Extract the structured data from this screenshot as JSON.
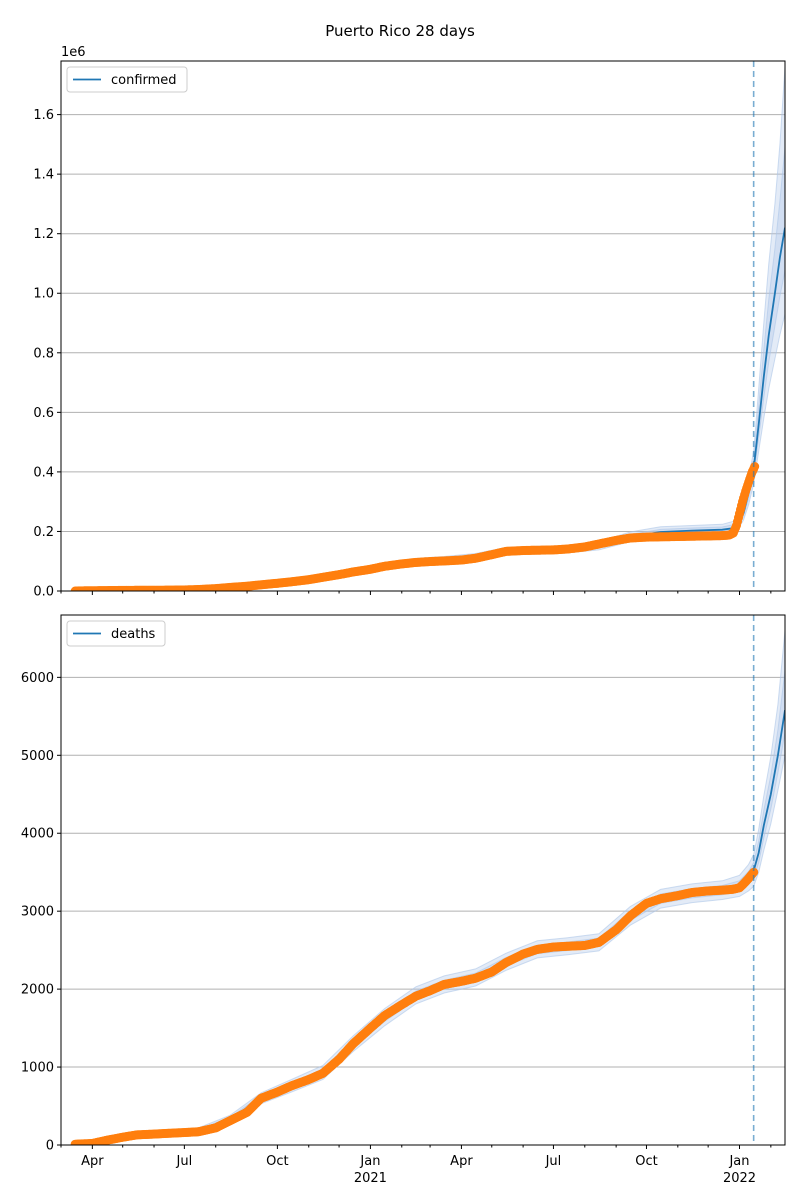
{
  "figure": {
    "title": "Puerto Rico 28 days"
  },
  "colors": {
    "model": "#1f77b4",
    "band": "#aec7e8",
    "observed": "#ff7f0e",
    "grid": "#b0b0b0",
    "forecast_line": "#1f77b4"
  },
  "chart_data": [
    {
      "type": "line",
      "legend": "confirmed",
      "legend_loc": "upper left",
      "y_offset_label": "1e6",
      "ylim": [
        0,
        1780000
      ],
      "yticks": [
        0,
        200000,
        400000,
        600000,
        800000,
        1000000,
        1200000,
        1400000,
        1600000
      ],
      "ytick_labels": [
        "0.0",
        "0.2",
        "0.4",
        "0.6",
        "0.8",
        "1.0",
        "1.2",
        "1.4",
        "1.6"
      ],
      "grid": "y",
      "forecast_start": "2022-01-15",
      "model": {
        "x": [
          "2020-03-15",
          "2020-05-01",
          "2020-07-01",
          "2020-08-15",
          "2020-09-15",
          "2020-10-15",
          "2020-11-15",
          "2020-12-15",
          "2021-01-15",
          "2021-02-15",
          "2021-03-15",
          "2021-04-15",
          "2021-05-15",
          "2021-06-15",
          "2021-07-15",
          "2021-08-15",
          "2021-09-15",
          "2021-10-15",
          "2021-11-15",
          "2021-12-15",
          "2021-12-28",
          "2022-01-05",
          "2022-01-10",
          "2022-01-15",
          "2022-01-20",
          "2022-01-25",
          "2022-01-30",
          "2022-02-05",
          "2022-02-10",
          "2022-02-15"
        ],
        "y": [
          0,
          1000,
          4000,
          12000,
          22000,
          33000,
          46000,
          63000,
          83000,
          97000,
          103000,
          113000,
          134000,
          138000,
          140000,
          152000,
          182000,
          198000,
          203000,
          206000,
          212000,
          262000,
          330000,
          410000,
          560000,
          720000,
          860000,
          1000000,
          1120000,
          1220000
        ]
      },
      "band_outer": {
        "lower": [
          0,
          0,
          2000,
          8000,
          16000,
          26000,
          38000,
          54000,
          72000,
          85000,
          92000,
          100000,
          122000,
          126000,
          128000,
          138000,
          166000,
          180000,
          186000,
          188000,
          192000,
          238000,
          290000,
          360000,
          470000,
          580000,
          680000,
          780000,
          860000,
          930000
        ],
        "upper": [
          0,
          2000,
          6000,
          16000,
          28000,
          40000,
          54000,
          72000,
          94000,
          109000,
          116000,
          126000,
          146000,
          150000,
          152000,
          166000,
          198000,
          216000,
          220000,
          224000,
          236000,
          290000,
          380000,
          470000,
          680000,
          900000,
          1100000,
          1300000,
          1500000,
          1760000
        ]
      },
      "band_inner": {
        "lower": [
          0,
          500,
          3000,
          10000,
          19000,
          29500,
          42000,
          58500,
          77500,
          91000,
          97500,
          106500,
          128000,
          132000,
          134000,
          145000,
          174000,
          189000,
          194500,
          197000,
          202000,
          250000,
          310000,
          385000,
          515000,
          650000,
          770000,
          890000,
          990000,
          1075000
        ],
        "upper": [
          0,
          1500,
          5000,
          14000,
          25000,
          36500,
          50000,
          67500,
          88500,
          103000,
          109500,
          119500,
          140000,
          144000,
          146000,
          159000,
          190000,
          207000,
          211500,
          215000,
          224000,
          276000,
          355000,
          440000,
          620000,
          810000,
          980000,
          1150000,
          1310000,
          1490000
        ]
      },
      "observed": {
        "x": [
          "2020-03-15",
          "2020-04-01",
          "2020-05-01",
          "2020-06-01",
          "2020-07-01",
          "2020-07-15",
          "2020-08-01",
          "2020-08-15",
          "2020-09-01",
          "2020-09-15",
          "2020-10-01",
          "2020-10-15",
          "2020-11-01",
          "2020-11-15",
          "2020-12-01",
          "2020-12-15",
          "2021-01-01",
          "2021-01-15",
          "2021-02-01",
          "2021-02-15",
          "2021-03-01",
          "2021-03-15",
          "2021-04-01",
          "2021-04-15",
          "2021-05-01",
          "2021-05-15",
          "2021-06-01",
          "2021-06-15",
          "2021-07-01",
          "2021-07-15",
          "2021-08-01",
          "2021-08-15",
          "2021-09-01",
          "2021-09-15",
          "2021-10-01",
          "2021-10-15",
          "2021-11-01",
          "2021-11-15",
          "2021-12-01",
          "2021-12-15",
          "2021-12-22",
          "2021-12-26",
          "2021-12-29",
          "2022-01-01",
          "2022-01-04",
          "2022-01-07",
          "2022-01-10",
          "2022-01-13",
          "2022-01-16"
        ],
        "y": [
          0,
          1000,
          2000,
          2500,
          3500,
          5000,
          8000,
          12000,
          16000,
          21000,
          26000,
          31000,
          38000,
          46000,
          55000,
          64000,
          73000,
          83000,
          91000,
          96000,
          99000,
          101000,
          104000,
          110000,
          122000,
          133000,
          136000,
          137000,
          138000,
          141000,
          148000,
          158000,
          170000,
          178000,
          181000,
          182000,
          183000,
          184000,
          185000,
          186000,
          188000,
          195000,
          220000,
          260000,
          300000,
          335000,
          365000,
          395000,
          418000
        ]
      }
    },
    {
      "type": "line",
      "legend": "deaths",
      "legend_loc": "upper left",
      "ylim": [
        0,
        6800
      ],
      "yticks": [
        0,
        1000,
        2000,
        3000,
        4000,
        5000,
        6000
      ],
      "ytick_labels": [
        "0",
        "1000",
        "2000",
        "3000",
        "4000",
        "5000",
        "6000"
      ],
      "grid": "y",
      "forecast_start": "2022-01-15",
      "model": {
        "x": [
          "2020-03-15",
          "2020-04-15",
          "2020-05-15",
          "2020-06-15",
          "2020-07-15",
          "2020-08-15",
          "2020-09-15",
          "2020-10-15",
          "2020-11-15",
          "2020-12-15",
          "2021-01-15",
          "2021-02-15",
          "2021-03-15",
          "2021-04-15",
          "2021-05-15",
          "2021-06-15",
          "2021-07-15",
          "2021-08-15",
          "2021-09-15",
          "2021-10-15",
          "2021-11-15",
          "2021-12-15",
          "2022-01-01",
          "2022-01-10",
          "2022-01-15",
          "2022-01-20",
          "2022-01-25",
          "2022-02-01",
          "2022-02-08",
          "2022-02-15"
        ],
        "y": [
          10,
          70,
          130,
          150,
          180,
          330,
          600,
          760,
          930,
          1300,
          1640,
          1920,
          2060,
          2150,
          2350,
          2510,
          2550,
          2600,
          2940,
          3160,
          3230,
          3270,
          3320,
          3420,
          3520,
          3750,
          4100,
          4500,
          5000,
          5580
        ]
      },
      "band_outer": {
        "lower": [
          0,
          40,
          90,
          110,
          140,
          280,
          530,
          680,
          840,
          1200,
          1530,
          1810,
          1950,
          2040,
          2240,
          2400,
          2440,
          2490,
          2820,
          3040,
          3110,
          3150,
          3190,
          3260,
          3320,
          3500,
          3780,
          4120,
          4550,
          5000
        ],
        "upper": [
          30,
          100,
          170,
          190,
          220,
          380,
          670,
          840,
          1020,
          1400,
          1750,
          2030,
          2170,
          2260,
          2460,
          2620,
          2660,
          2710,
          3060,
          3280,
          3350,
          3390,
          3460,
          3600,
          3730,
          4050,
          4480,
          4980,
          5650,
          6600
        ]
      },
      "band_inner": {
        "lower": [
          5,
          55,
          110,
          130,
          160,
          305,
          565,
          720,
          885,
          1250,
          1585,
          1865,
          2005,
          2095,
          2295,
          2455,
          2495,
          2545,
          2880,
          3100,
          3170,
          3210,
          3255,
          3340,
          3420,
          3625,
          3940,
          4310,
          4775,
          5290
        ],
        "upper": [
          20,
          85,
          150,
          170,
          200,
          355,
          635,
          800,
          975,
          1350,
          1695,
          1975,
          2115,
          2205,
          2405,
          2565,
          2605,
          2655,
          3000,
          3220,
          3290,
          3330,
          3390,
          3510,
          3625,
          3900,
          4290,
          4740,
          5325,
          6090
        ]
      },
      "observed": {
        "x": [
          "2020-03-15",
          "2020-04-01",
          "2020-04-15",
          "2020-05-01",
          "2020-05-15",
          "2020-06-01",
          "2020-06-15",
          "2020-07-01",
          "2020-07-15",
          "2020-08-01",
          "2020-08-15",
          "2020-09-01",
          "2020-09-15",
          "2020-10-01",
          "2020-10-15",
          "2020-11-01",
          "2020-11-15",
          "2020-12-01",
          "2020-12-15",
          "2021-01-01",
          "2021-01-15",
          "2021-02-01",
          "2021-02-15",
          "2021-03-01",
          "2021-03-15",
          "2021-04-01",
          "2021-04-15",
          "2021-05-01",
          "2021-05-15",
          "2021-06-01",
          "2021-06-15",
          "2021-07-01",
          "2021-07-15",
          "2021-08-01",
          "2021-08-15",
          "2021-09-01",
          "2021-09-15",
          "2021-10-01",
          "2021-10-15",
          "2021-11-01",
          "2021-11-15",
          "2021-12-01",
          "2021-12-15",
          "2021-12-25",
          "2022-01-01",
          "2022-01-05",
          "2022-01-10",
          "2022-01-15"
        ],
        "y": [
          10,
          20,
          60,
          100,
          130,
          140,
          150,
          160,
          170,
          220,
          310,
          420,
          600,
          680,
          760,
          840,
          920,
          1100,
          1300,
          1500,
          1660,
          1800,
          1910,
          1980,
          2060,
          2100,
          2140,
          2220,
          2340,
          2450,
          2510,
          2540,
          2550,
          2560,
          2600,
          2760,
          2940,
          3100,
          3160,
          3200,
          3240,
          3260,
          3270,
          3280,
          3300,
          3350,
          3420,
          3500
        ]
      }
    }
  ],
  "x_axis": {
    "range": [
      "2020-03-01",
      "2022-02-15"
    ],
    "ticks": [
      {
        "date": "2020-04-01",
        "label": "Apr",
        "sub": ""
      },
      {
        "date": "2020-07-01",
        "label": "Jul",
        "sub": ""
      },
      {
        "date": "2020-10-01",
        "label": "Oct",
        "sub": ""
      },
      {
        "date": "2021-01-01",
        "label": "Jan",
        "sub": "2021"
      },
      {
        "date": "2021-04-01",
        "label": "Apr",
        "sub": ""
      },
      {
        "date": "2021-07-01",
        "label": "Jul",
        "sub": ""
      },
      {
        "date": "2021-10-01",
        "label": "Oct",
        "sub": ""
      },
      {
        "date": "2022-01-01",
        "label": "Jan",
        "sub": "2022"
      }
    ]
  }
}
